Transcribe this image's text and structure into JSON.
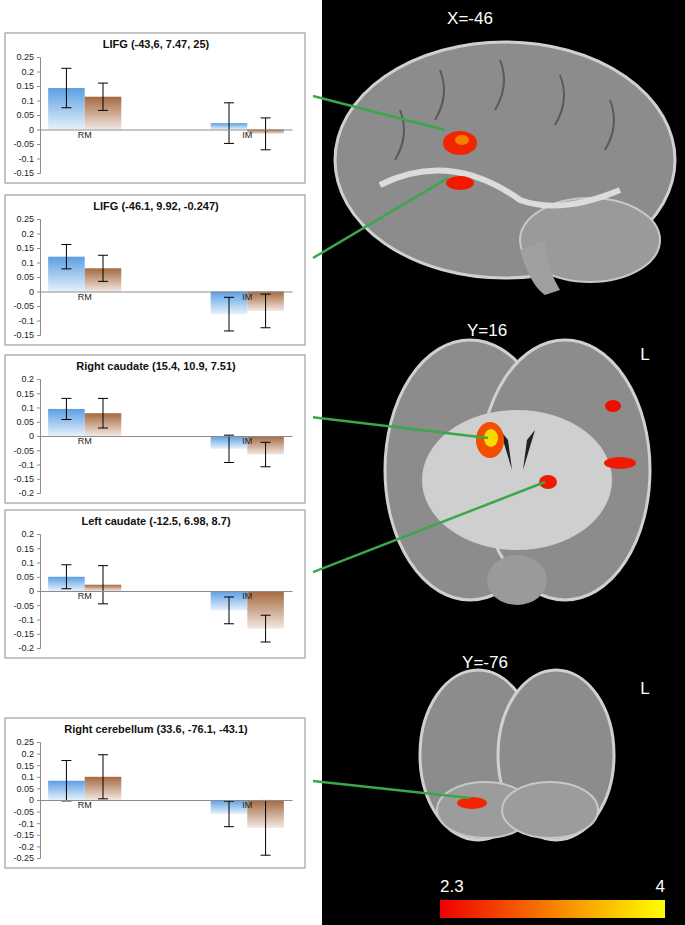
{
  "chart_data": [
    {
      "type": "bar",
      "title": "LIFG (-43,6, 7.47, 25)",
      "categories": [
        "RM",
        "IM"
      ],
      "series": [
        {
          "color": "#5b9fe3",
          "values": [
            0.143,
            0.022
          ],
          "errors": [
            0.068,
            0.07
          ]
        },
        {
          "color": "#a5683f",
          "values": [
            0.113,
            -0.015
          ],
          "errors": [
            0.047,
            0.055
          ]
        }
      ],
      "ylim": [
        -0.15,
        0.25
      ],
      "yticks": [
        -0.15,
        -0.1,
        -0.05,
        0,
        0.05,
        0.1,
        0.15,
        0.2,
        0.25
      ],
      "grid": false
    },
    {
      "type": "bar",
      "title": "LIFG (-46.1, 9.92, -0.247)",
      "categories": [
        "RM",
        "IM"
      ],
      "series": [
        {
          "color": "#5b9fe3",
          "values": [
            0.12,
            -0.078
          ],
          "errors": [
            0.042,
            0.058
          ]
        },
        {
          "color": "#a5683f",
          "values": [
            0.08,
            -0.067
          ],
          "errors": [
            0.045,
            0.058
          ]
        }
      ],
      "ylim": [
        -0.15,
        0.25
      ],
      "yticks": [
        -0.15,
        -0.1,
        -0.05,
        0,
        0.05,
        0.1,
        0.15,
        0.2,
        0.25
      ],
      "grid": false
    },
    {
      "type": "bar",
      "title": "Right caudate (15.4, 10.9, 7.51)",
      "categories": [
        "RM",
        "IM"
      ],
      "series": [
        {
          "color": "#5b9fe3",
          "values": [
            0.095,
            -0.045
          ],
          "errors": [
            0.037,
            0.048
          ]
        },
        {
          "color": "#a5683f",
          "values": [
            0.08,
            -0.065
          ],
          "errors": [
            0.052,
            0.043
          ]
        }
      ],
      "ylim": [
        -0.2,
        0.2
      ],
      "yticks": [
        -0.2,
        -0.15,
        -0.1,
        -0.05,
        0,
        0.05,
        0.1,
        0.15,
        0.2
      ],
      "grid": false
    },
    {
      "type": "bar",
      "title": "Left caudate (-12.5, 6.98, 8.7)",
      "categories": [
        "RM",
        "IM"
      ],
      "series": [
        {
          "color": "#5b9fe3",
          "values": [
            0.05,
            -0.068
          ],
          "errors": [
            0.042,
            0.047
          ]
        },
        {
          "color": "#a5683f",
          "values": [
            0.022,
            -0.132
          ],
          "errors": [
            0.067,
            0.047
          ]
        }
      ],
      "ylim": [
        -0.2,
        0.2
      ],
      "yticks": [
        -0.2,
        -0.15,
        -0.1,
        -0.05,
        0,
        0.05,
        0.1,
        0.15,
        0.2
      ],
      "grid": false
    },
    {
      "type": "bar",
      "title": "Right cerebellum (33.6, -76.1, -43.1)",
      "categories": [
        "RM",
        "IM"
      ],
      "series": [
        {
          "color": "#5b9fe3",
          "values": [
            0.083,
            -0.06
          ],
          "errors": [
            0.087,
            0.055
          ]
        },
        {
          "color": "#a5683f",
          "values": [
            0.1,
            -0.12
          ],
          "errors": [
            0.095,
            0.118
          ]
        }
      ],
      "ylim": [
        -0.25,
        0.25
      ],
      "yticks": [
        -0.25,
        -0.2,
        -0.15,
        -0.1,
        -0.05,
        0,
        0.05,
        0.1,
        0.15,
        0.2,
        0.25
      ],
      "grid": false
    }
  ],
  "brain_figure": {
    "slice_labels": [
      "X=-46",
      "Y=16",
      "Y=-76"
    ],
    "orientation_labels": [
      "L",
      "L"
    ],
    "colorbar": {
      "range": [
        2.3,
        4
      ],
      "ticks": [
        2.3,
        4
      ],
      "colors": [
        "#ee0000",
        "#ffff00"
      ]
    }
  }
}
